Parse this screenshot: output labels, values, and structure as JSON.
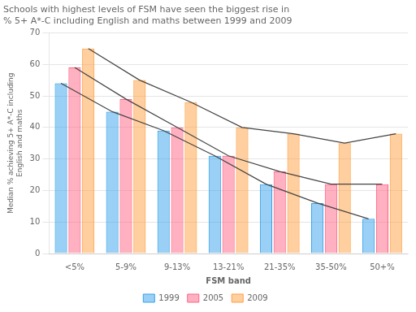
{
  "chart_data": {
    "type": "bar",
    "title": "Schools with highest levels of FSM have seen the biggest rise in\n% 5+ A*-C including English and maths between 1999 and 2009",
    "xlabel": "FSM band",
    "ylabel": "Median % achieving 5+ A*-C including\nEnglish and maths",
    "categories": [
      "<5%",
      "5-9%",
      "9-13%",
      "13-21%",
      "21-35%",
      "35-50%",
      "50+%"
    ],
    "series": [
      {
        "name": "1999",
        "values": [
          54,
          45,
          39,
          31,
          22,
          16,
          11
        ]
      },
      {
        "name": "2005",
        "values": [
          59,
          49,
          40,
          31,
          26,
          22,
          22
        ]
      },
      {
        "name": "2009",
        "values": [
          65,
          55,
          48,
          40,
          38,
          35,
          38
        ]
      }
    ],
    "ylim": [
      0,
      70
    ],
    "yticks": [
      0,
      10,
      20,
      30,
      40,
      50,
      60,
      70
    ],
    "grid": true,
    "legend": "bottom"
  }
}
